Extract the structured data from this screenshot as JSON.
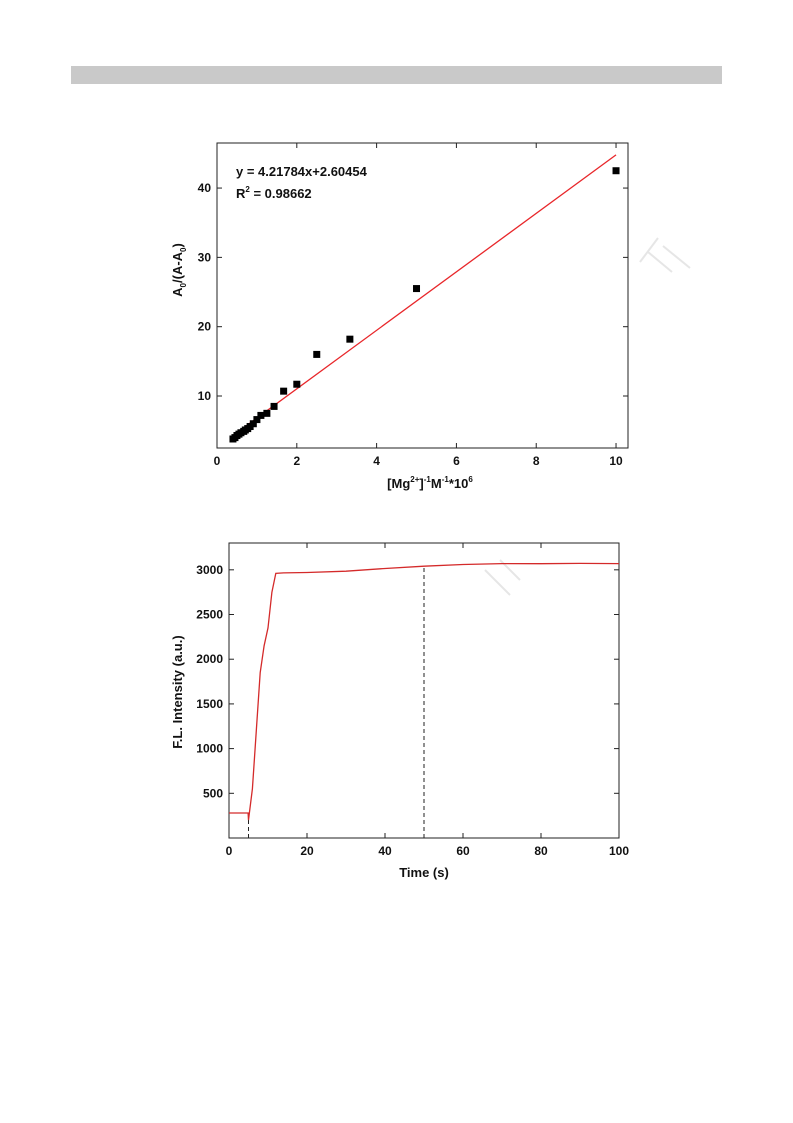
{
  "colors": {
    "fit_line": "#e8262a",
    "trace": "#d42a2a",
    "points": "#000000",
    "header_bar": "#c9c9c9"
  },
  "chart_data": [
    {
      "type": "scatter",
      "xlabel": {
        "base": "[Mg",
        "sup1": "2+",
        "mid1": "]",
        "sup2": "-1",
        "mid2": "M",
        "sup3": "-1",
        "tail": "*10",
        "sup4": "6"
      },
      "ylabel": {
        "base": "A",
        "sub1": "0",
        "mid": "/(A-A",
        "sub2": "0",
        "tail": ")"
      },
      "xlim": [
        0,
        10.3
      ],
      "ylim": [
        2.5,
        46.5
      ],
      "xticks": [
        0,
        2,
        4,
        6,
        8,
        10
      ],
      "yticks": [
        10,
        20,
        30,
        40
      ],
      "equation": "y = 4.21784x+2.60454",
      "r2": {
        "label": "R",
        "sup": "2",
        "value": " = 0.98662"
      },
      "fit": {
        "slope": 4.21784,
        "intercept": 2.60454,
        "x_range": [
          0.4,
          10
        ]
      },
      "points": [
        [
          0.4,
          3.8
        ],
        [
          0.45,
          4.0
        ],
        [
          0.5,
          4.3
        ],
        [
          0.55,
          4.5
        ],
        [
          0.6,
          4.7
        ],
        [
          0.67,
          4.9
        ],
        [
          0.71,
          5.1
        ],
        [
          0.77,
          5.3
        ],
        [
          0.83,
          5.6
        ],
        [
          0.91,
          6.0
        ],
        [
          1.0,
          6.6
        ],
        [
          1.1,
          7.2
        ],
        [
          1.25,
          7.5
        ],
        [
          1.43,
          8.5
        ],
        [
          1.67,
          10.7
        ],
        [
          2.0,
          11.7
        ],
        [
          2.5,
          16.0
        ],
        [
          3.33,
          18.2
        ],
        [
          5.0,
          25.5
        ],
        [
          10.0,
          42.5
        ]
      ]
    },
    {
      "type": "line",
      "xlabel": "Time (s)",
      "ylabel": "F.L. Intensity (a.u.)",
      "xlim": [
        0,
        100
      ],
      "ylim": [
        0,
        3300
      ],
      "xticks": [
        0,
        20,
        40,
        60,
        80,
        100
      ],
      "yticks": [
        500,
        1000,
        1500,
        2000,
        2500,
        3000
      ],
      "series": [
        {
          "x": [
            0,
            4.9,
            5.0,
            6,
            7,
            8,
            9,
            10,
            11,
            12,
            14,
            20,
            30,
            40,
            50,
            60,
            70,
            80,
            90,
            100
          ],
          "y": [
            280,
            280,
            200,
            550,
            1200,
            1850,
            2150,
            2350,
            2750,
            2960,
            2965,
            2970,
            2985,
            3015,
            3040,
            3060,
            3070,
            3068,
            3072,
            3070
          ]
        }
      ],
      "marker_lines": [
        {
          "x": 5,
          "y_top": 280
        },
        {
          "x": 50,
          "y_top": 3040
        }
      ]
    }
  ]
}
